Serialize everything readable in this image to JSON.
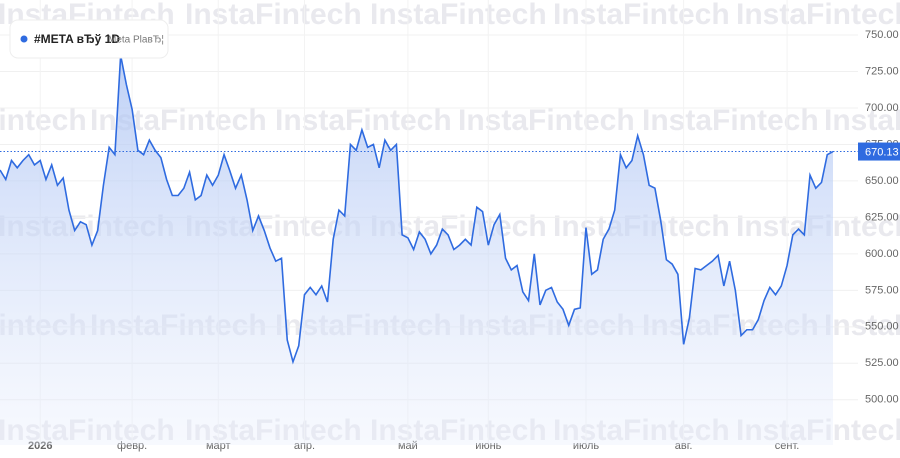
{
  "header": {
    "title": "#META вЂў 1D",
    "subtitle": "Meta PlaвЂ¦"
  },
  "watermark": "InstaFintech",
  "chart_data": {
    "type": "line",
    "color": "#2f6be0",
    "grid": true,
    "categories": [
      null,
      null,
      null,
      null,
      null,
      null,
      null,
      "2026",
      null,
      null,
      null,
      null,
      null,
      null,
      null,
      null,
      null,
      null,
      null,
      null,
      null,
      null,
      null,
      "февр.",
      null,
      null,
      null,
      null,
      null,
      null,
      null,
      null,
      null,
      null,
      null,
      null,
      null,
      null,
      "март",
      null,
      null,
      null,
      null,
      null,
      null,
      null,
      null,
      null,
      null,
      null,
      null,
      null,
      null,
      "апр.",
      null,
      null,
      null,
      null,
      null,
      null,
      null,
      null,
      null,
      null,
      null,
      null,
      null,
      null,
      null,
      null,
      null,
      "май",
      null,
      null,
      null,
      null,
      null,
      null,
      null,
      null,
      null,
      null,
      null,
      null,
      null,
      "июнь",
      null,
      null,
      null,
      null,
      null,
      null,
      null,
      null,
      null,
      null,
      null,
      null,
      null,
      null,
      null,
      null,
      "июль",
      null,
      null,
      null,
      null,
      null,
      null,
      null,
      null,
      null,
      null,
      null,
      null,
      null,
      null,
      null,
      null,
      "авг.",
      null,
      null,
      null,
      null,
      null,
      null,
      null,
      null,
      null,
      null,
      null,
      null,
      null,
      null,
      null,
      null,
      null,
      "сент.",
      null,
      null,
      null,
      null,
      null,
      null,
      null,
      null
    ],
    "values": [
      657.5,
      651,
      664,
      659,
      664,
      668,
      661,
      664,
      651,
      661,
      647,
      652,
      630,
      616,
      622,
      620,
      606,
      616,
      647,
      673,
      668,
      736,
      716,
      699,
      671,
      668,
      678,
      671,
      666,
      651,
      640,
      640,
      645,
      656,
      637,
      640,
      654,
      647,
      654,
      668,
      657,
      645,
      654,
      637,
      616,
      626,
      616,
      604,
      595,
      597,
      541,
      526,
      537,
      572,
      577,
      572,
      578,
      567,
      610,
      630,
      626,
      675,
      671,
      685,
      673,
      675,
      659,
      678,
      671,
      675,
      613,
      611,
      603,
      615,
      610,
      600,
      606,
      617,
      613,
      603,
      606,
      610,
      606,
      632,
      629,
      606,
      620,
      627,
      597,
      589,
      592,
      574,
      568,
      600,
      565,
      575,
      577,
      567,
      562,
      551,
      562,
      563,
      618,
      586,
      589,
      610,
      617,
      630,
      668,
      659,
      664,
      681,
      668,
      647,
      645,
      623,
      596,
      593,
      586,
      538,
      556,
      590,
      589,
      592,
      595,
      599,
      578,
      595,
      575,
      544,
      548,
      548,
      555,
      568,
      577,
      572,
      578,
      592,
      613,
      617,
      613,
      654,
      645,
      649,
      668,
      670.13
    ],
    "ylim": [
      469,
      774
    ],
    "yticks": [
      {
        "value": 500,
        "label": "500.00"
      },
      {
        "value": 525,
        "label": "525.00"
      },
      {
        "value": 550,
        "label": "550.00"
      },
      {
        "value": 575,
        "label": "575.00"
      },
      {
        "value": 600,
        "label": "600.00"
      },
      {
        "value": 625,
        "label": "625.00"
      },
      {
        "value": 650,
        "label": "650.00"
      },
      {
        "value": 675,
        "label": "675.00"
      },
      {
        "value": 700,
        "label": "700.00"
      },
      {
        "value": 725,
        "label": "725.00"
      },
      {
        "value": 750,
        "label": "750.00"
      }
    ]
  }
}
